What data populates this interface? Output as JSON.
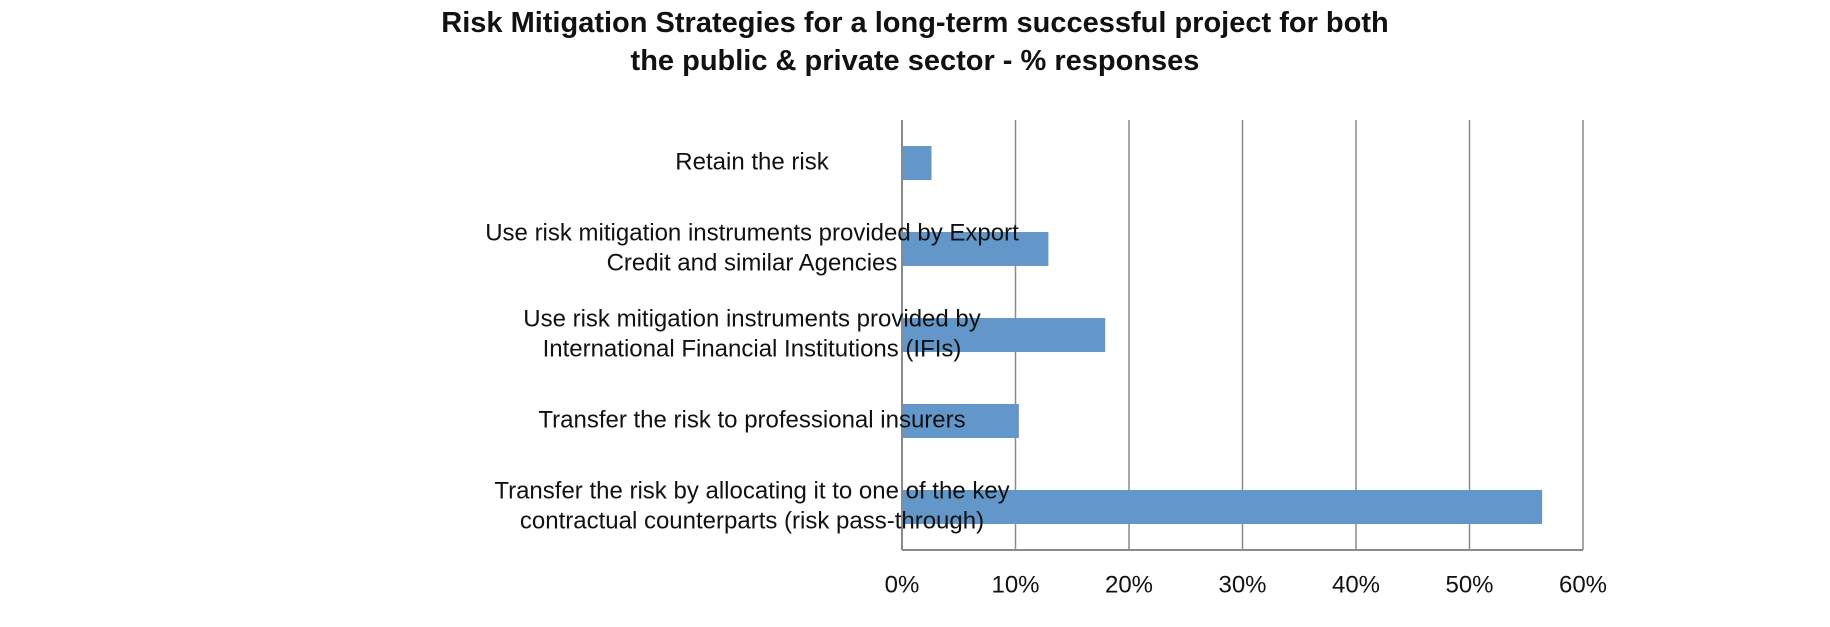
{
  "chart_data": {
    "type": "bar",
    "orientation": "horizontal",
    "title_lines": [
      "Risk Mitigation Strategies for a long-term successful project for both",
      "the public & private sector - % responses"
    ],
    "title": "Risk Mitigation Strategies for a long-term successful project for both the public & private sector - % responses",
    "xlabel": "",
    "ylabel": "",
    "categories": [
      [
        "Retain the risk"
      ],
      [
        "Use risk mitigation instruments provided by Export",
        "Credit and similar Agencies"
      ],
      [
        "Use risk mitigation instruments provided by",
        "International Financial Institutions (IFIs)"
      ],
      [
        "Transfer the risk to professional insurers"
      ],
      [
        "Transfer the risk by allocating it to one of the key",
        "contractual counterparts (risk pass-through)"
      ]
    ],
    "values": [
      2.6,
      12.9,
      17.9,
      10.3,
      56.4
    ],
    "xlim": [
      0,
      60
    ],
    "xticks": [
      0,
      10,
      20,
      30,
      40,
      50,
      60
    ],
    "xtick_labels": [
      "0%",
      "10%",
      "20%",
      "30%",
      "40%",
      "50%",
      "60%"
    ],
    "grid": "vertical",
    "legend": "none",
    "bar_color": "#6497c9",
    "grid_color": "#8a8a8a"
  }
}
